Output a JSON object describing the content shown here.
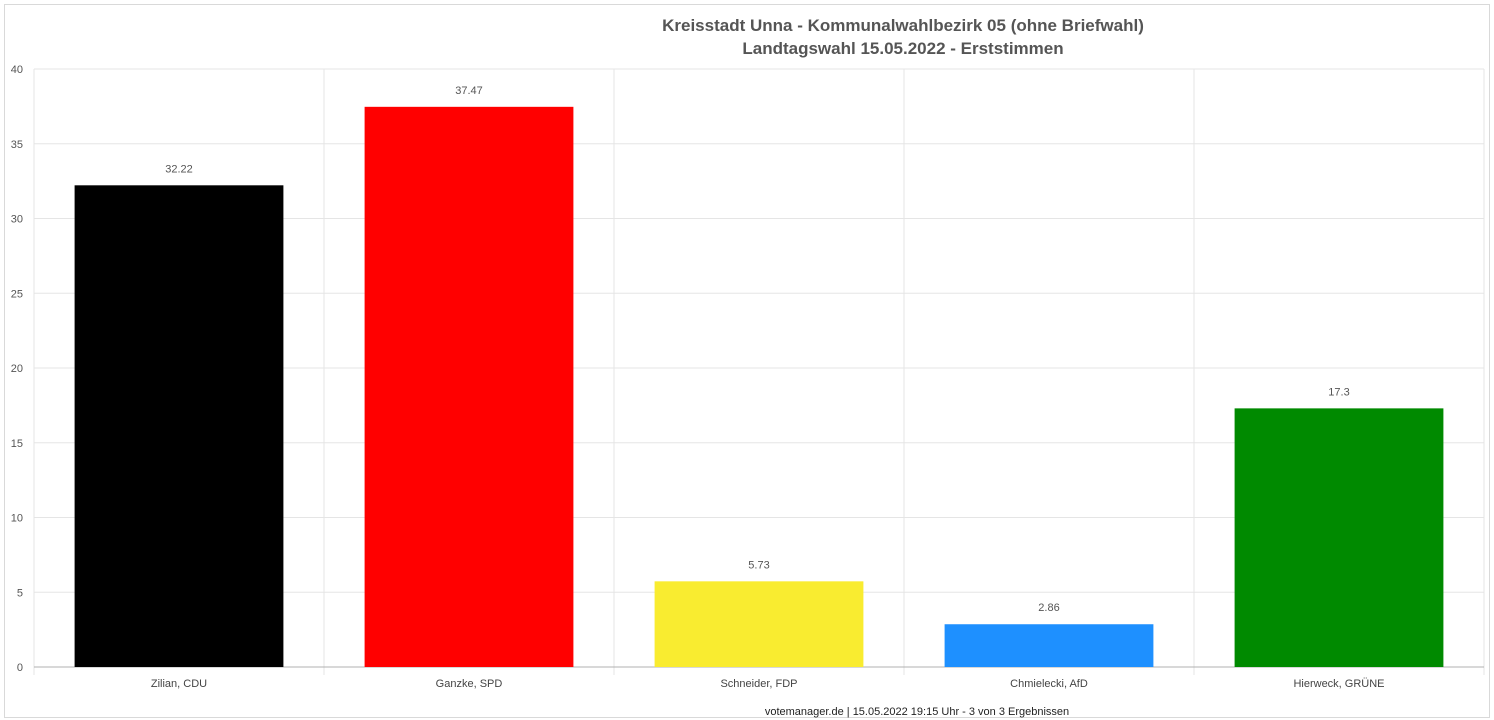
{
  "chart_data": {
    "type": "bar",
    "title": [
      "Kreisstadt Unna - Kommunalwahlbezirk 05 (ohne Briefwahl)",
      "Landtagswahl 15.05.2022  - Erststimmen"
    ],
    "categories": [
      "Zilian, CDU",
      "Ganzke, SPD",
      "Schneider, FDP",
      "Chmielecki, AfD",
      "Hierweck, GRÜNE"
    ],
    "values": [
      32.22,
      37.47,
      5.73,
      2.86,
      17.3
    ],
    "value_labels": [
      "32.22",
      "37.47",
      "5.73",
      "2.86",
      "17.3"
    ],
    "colors": [
      "#000000",
      "#ff0000",
      "#f9ec30",
      "#1e90ff",
      "#008a00"
    ],
    "ylim": [
      0,
      40
    ],
    "yticks": [
      0,
      5,
      10,
      15,
      20,
      25,
      30,
      35,
      40
    ],
    "xlabel": "",
    "ylabel": "",
    "grid": true,
    "legend": "none"
  },
  "footer": "votemanager.de | 15.05.2022 19:15 Uhr - 3 von 3 Ergebnissen"
}
